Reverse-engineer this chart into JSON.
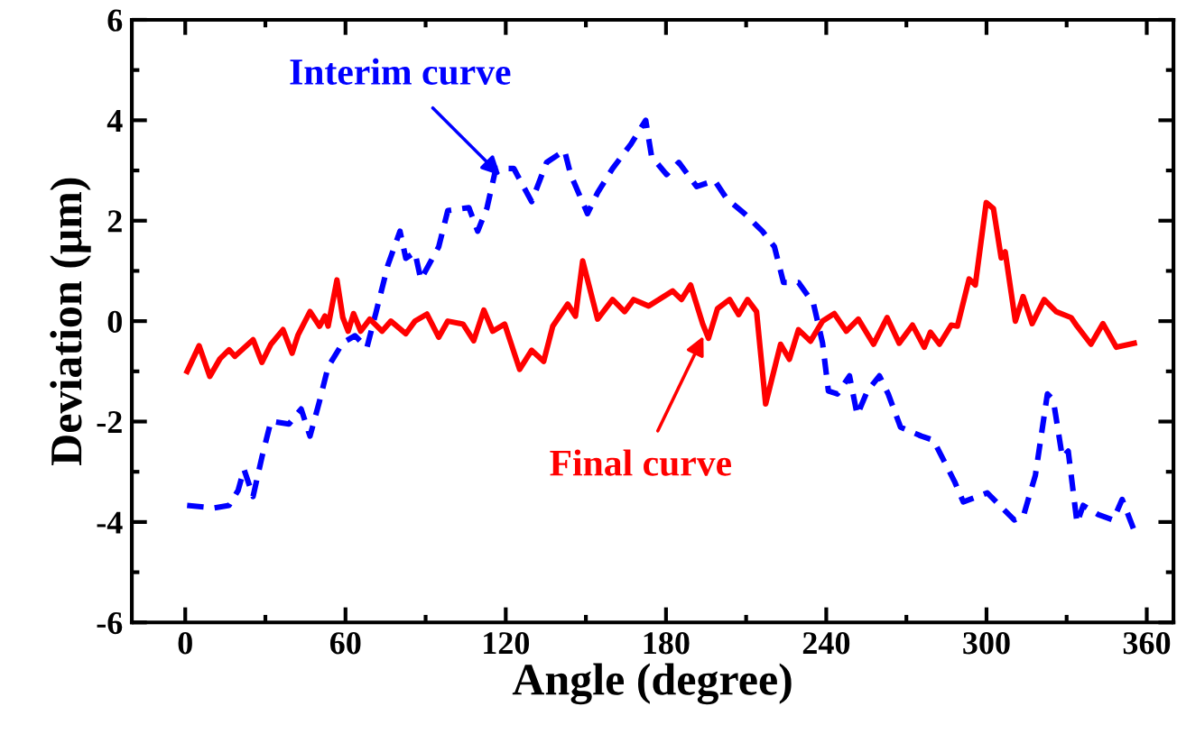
{
  "chart_data": {
    "type": "line",
    "xlabel": "Angle (degree)",
    "ylabel": "Deviation (μm)",
    "xlim": [
      -20,
      370
    ],
    "ylim": [
      -6,
      6
    ],
    "xticks": [
      0,
      60,
      120,
      180,
      240,
      300,
      360
    ],
    "yticks": [
      -6,
      -4,
      -2,
      0,
      2,
      4,
      6
    ],
    "grid": false,
    "legend": false,
    "annotations": [
      {
        "text": "Interim curve",
        "x": 118,
        "y": 2.9
      },
      {
        "text": "Final curve",
        "x": 194,
        "y": -0.3
      }
    ],
    "series": [
      {
        "color": "#0000ff",
        "line_style": "dashed",
        "x": [
          0.7,
          10.8,
          16.4,
          19.8,
          22,
          25.4,
          28.7,
          32.1,
          38.8,
          43.4,
          46.7,
          50.1,
          53.5,
          59,
          63.6,
          68,
          71.4,
          75.9,
          80.4,
          82.6,
          86,
          88.2,
          94.9,
          98.3,
          106.2,
          109.5,
          113,
          116.3,
          123,
          129.7,
          135.3,
          142,
          144.3,
          150.6,
          154.4,
          160,
          166.8,
          172.4,
          174.6,
          180.2,
          184.8,
          191.5,
          198.2,
          202.7,
          209.4,
          216.1,
          220.6,
          224,
          229.6,
          235.2,
          238.6,
          240.8,
          244.2,
          248.7,
          251.6,
          255.4,
          259.9,
          263.2,
          267.8,
          275.6,
          280.1,
          288,
          291.3,
          300.3,
          310.4,
          313.7,
          318.3,
          322.8,
          325,
          328.4,
          330.6,
          333.9,
          336.2,
          341.8,
          347.4,
          350.8,
          355.3
        ],
        "values": [
          -3.67,
          -3.72,
          -3.67,
          -3.37,
          -2.95,
          -3.49,
          -2.71,
          -1.99,
          -2.05,
          -1.75,
          -2.29,
          -1.63,
          -0.91,
          -0.43,
          -0.29,
          -0.53,
          0.17,
          1.12,
          1.79,
          1.25,
          1.37,
          0.83,
          1.48,
          2.2,
          2.26,
          1.79,
          2.26,
          3.04,
          3.04,
          2.38,
          3.16,
          3.4,
          2.92,
          2.14,
          2.56,
          3.04,
          3.52,
          4.0,
          3.28,
          2.92,
          3.16,
          2.68,
          2.8,
          2.44,
          2.14,
          1.79,
          1.48,
          0.77,
          0.77,
          0.35,
          -0.43,
          -1.39,
          -1.45,
          -1.09,
          -1.87,
          -1.39,
          -1.09,
          -1.45,
          -2.11,
          -2.29,
          -2.37,
          -3.19,
          -3.6,
          -3.42,
          -3.96,
          -3.9,
          -3.07,
          -1.45,
          -1.57,
          -2.71,
          -2.59,
          -4.02,
          -3.67,
          -3.85,
          -3.96,
          -3.55,
          -4.17
        ]
      },
      {
        "color": "#ff0000",
        "line_style": "solid",
        "x": [
          0.7,
          5.2,
          9.2,
          13,
          16.4,
          18.6,
          25.4,
          28.7,
          32.1,
          36.6,
          40,
          42.2,
          46.7,
          50.3,
          52.3,
          53.5,
          56.8,
          59,
          61,
          63,
          65.7,
          69.1,
          73.7,
          77,
          82.6,
          86,
          90.5,
          94.9,
          98.3,
          104,
          108,
          111.8,
          115.1,
          119.6,
          125.2,
          129.7,
          134.2,
          137.6,
          143.2,
          146.1,
          148.8,
          154.4,
          160,
          164.5,
          167.9,
          173.5,
          182.5,
          185.8,
          189.2,
          193.7,
          195.9,
          199.3,
          203.8,
          207.2,
          210.5,
          213.9,
          217.3,
          222.9,
          226.2,
          229.6,
          234.1,
          238.6,
          243,
          247.5,
          252,
          257.7,
          262.8,
          267.3,
          272.3,
          276.7,
          279,
          282.4,
          286.8,
          289.1,
          293.5,
          295.8,
          299.9,
          302.6,
          305.5,
          307,
          310.8,
          313.7,
          317.1,
          321.6,
          326.1,
          331.7,
          333.9,
          339.1,
          343.6,
          348.6,
          355.3
        ],
        "values": [
          -1.0,
          -0.49,
          -1.1,
          -0.75,
          -0.57,
          -0.7,
          -0.37,
          -0.82,
          -0.46,
          -0.17,
          -0.64,
          -0.28,
          0.19,
          -0.1,
          0.1,
          -0.1,
          0.82,
          0.07,
          -0.2,
          0.15,
          -0.2,
          0.04,
          -0.2,
          0.0,
          -0.25,
          0.0,
          0.14,
          -0.32,
          0.0,
          -0.06,
          -0.39,
          0.22,
          -0.2,
          -0.06,
          -0.96,
          -0.58,
          -0.8,
          -0.1,
          0.34,
          0.1,
          1.2,
          0.04,
          0.43,
          0.19,
          0.43,
          0.3,
          0.6,
          0.43,
          0.72,
          -0.05,
          -0.34,
          0.25,
          0.43,
          0.13,
          0.43,
          0.19,
          -1.65,
          -0.46,
          -0.76,
          -0.17,
          -0.4,
          0.0,
          0.15,
          -0.2,
          0.04,
          -0.46,
          0.07,
          -0.44,
          -0.08,
          -0.52,
          -0.22,
          -0.46,
          -0.08,
          -0.1,
          0.84,
          0.72,
          2.36,
          2.24,
          1.26,
          1.38,
          0.0,
          0.49,
          -0.05,
          0.43,
          0.19,
          0.07,
          -0.1,
          -0.46,
          -0.05,
          -0.52,
          -0.44
        ]
      }
    ]
  }
}
